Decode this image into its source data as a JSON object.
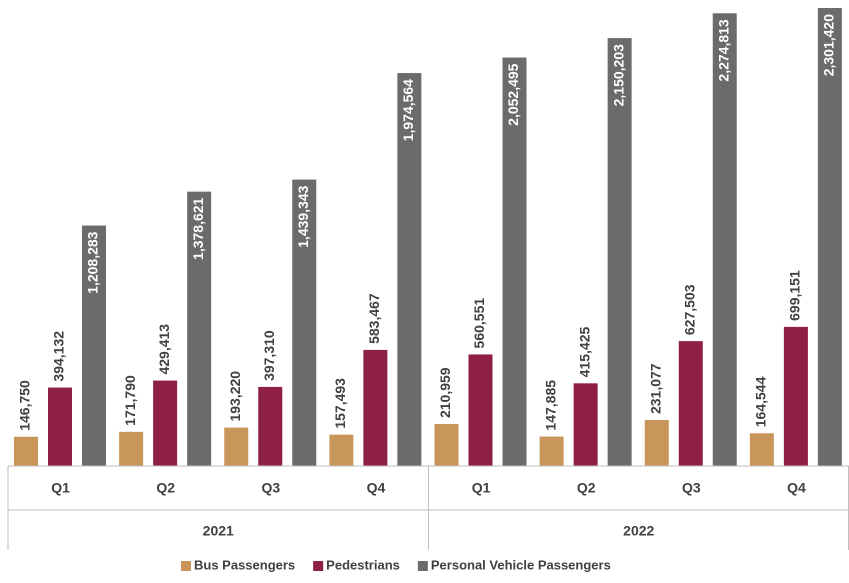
{
  "chart_data": {
    "type": "bar",
    "categories": [
      "Q1",
      "Q2",
      "Q3",
      "Q4",
      "Q1",
      "Q2",
      "Q3",
      "Q4"
    ],
    "groups": [
      "2021",
      "2022"
    ],
    "series": [
      {
        "name": "Bus Passengers",
        "color": "#c9965a",
        "values": [
          146750,
          171790,
          193220,
          157493,
          210959,
          147885,
          231077,
          164544
        ],
        "value_labels": [
          "146,750",
          "171,790",
          "193,220",
          "157,493",
          "210,959",
          "147,885",
          "231,077",
          "164,544"
        ]
      },
      {
        "name": "Pedestrians",
        "color": "#8e1f47",
        "values": [
          394132,
          429413,
          397310,
          583467,
          560551,
          415425,
          627503,
          699151
        ],
        "value_labels": [
          "394,132",
          "429,413",
          "397,310",
          "583,467",
          "560,551",
          "415,425",
          "627,503",
          "699,151"
        ]
      },
      {
        "name": "Personal Vehicle Passengers",
        "color": "#6b6b6b",
        "values": [
          1208283,
          1378621,
          1439343,
          1974564,
          2052495,
          2150203,
          2274813,
          2301420
        ],
        "value_labels": [
          "1,208,283",
          "1,378,621",
          "1,439,343",
          "1,974,564",
          "2,052,495",
          "2,150,203",
          "2,274,813",
          "2,301,420"
        ]
      }
    ],
    "legend": "bottom"
  }
}
